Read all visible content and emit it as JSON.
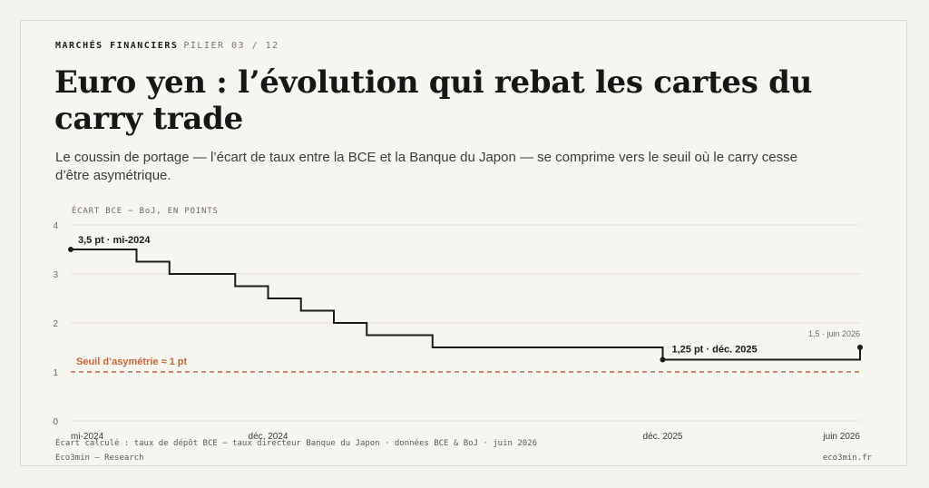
{
  "header": {
    "kicker_section": "MARCHÉS FINANCIERS",
    "kicker_pillar": "PILIER 03 / 12",
    "title": "Euro yen : l’évolution qui rebat les cartes du carry trade",
    "subtitle": "Le coussin de portage — l’écart de taux entre la BCE et la Banque du Japon — se comprime vers le seuil où le carry cesse d’être asymétrique."
  },
  "chart_data": {
    "type": "line",
    "step": true,
    "ylabel": "ÉCART BCE − BoJ, EN POINTS",
    "ylim": [
      0,
      4
    ],
    "yticks": [
      "0",
      "1",
      "2",
      "3",
      "4"
    ],
    "xlim": [
      "2024-06",
      "2026-06"
    ],
    "xticks": [
      {
        "date": "2024-06",
        "label": "mi-2024"
      },
      {
        "date": "2024-12",
        "label": "déc. 2024"
      },
      {
        "date": "2025-12",
        "label": "déc. 2025"
      },
      {
        "date": "2026-06",
        "label": "juin 2026"
      }
    ],
    "grid": true,
    "series": [
      {
        "color": "#1a1a1a",
        "points": [
          {
            "date": "2024-06",
            "value": 3.5
          },
          {
            "date": "2024-08",
            "value": 3.25
          },
          {
            "date": "2024-09",
            "value": 3.0
          },
          {
            "date": "2024-11",
            "value": 2.75
          },
          {
            "date": "2024-12",
            "value": 2.5
          },
          {
            "date": "2025-01",
            "value": 2.25
          },
          {
            "date": "2025-02",
            "value": 2.0
          },
          {
            "date": "2025-03",
            "value": 1.75
          },
          {
            "date": "2025-05",
            "value": 1.5
          },
          {
            "date": "2025-12",
            "value": 1.25
          },
          {
            "date": "2026-06",
            "value": 1.5
          }
        ]
      }
    ],
    "threshold": {
      "value": 1,
      "label": "Seuil d’asymétrie ≈ 1 pt",
      "color": "#c8643e"
    },
    "annotations": [
      {
        "date": "2024-06",
        "value": 3.5,
        "label": "3,5 pt · mi-2024"
      },
      {
        "date": "2025-12",
        "value": 1.25,
        "label": "1,25 pt · déc. 2025"
      },
      {
        "date": "2026-06",
        "value": 1.5,
        "label": "1,5 · juin 2026"
      }
    ]
  },
  "footer": {
    "source": "Écart calculé : taux de dépôt BCE − taux directeur Banque du Japon · données BCE & BoJ · juin 2026",
    "brand_left": "Eco3min — Research",
    "brand_right": "eco3min.fr"
  }
}
